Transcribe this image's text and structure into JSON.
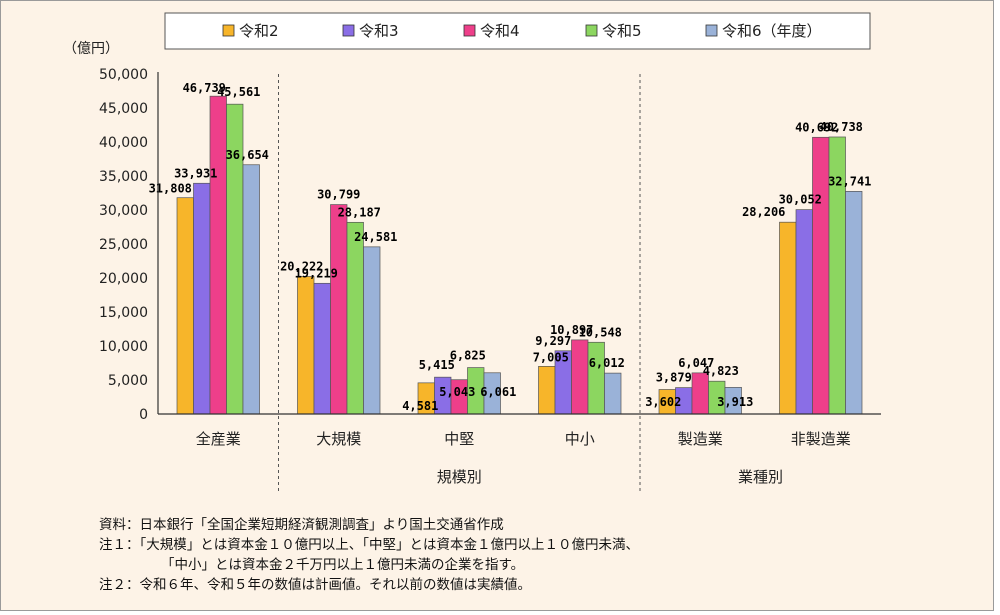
{
  "chart_data": {
    "type": "bar",
    "ylabel": "（億円）",
    "ylim": [
      0,
      50000
    ],
    "yticks": [
      "50,000",
      "45,000",
      "40,000",
      "35,000",
      "30,000",
      "25,000",
      "20,000",
      "15,000",
      "10,000",
      "5,000",
      "0"
    ],
    "ytick_values": [
      50000,
      45000,
      40000,
      35000,
      30000,
      25000,
      20000,
      15000,
      10000,
      5000,
      0
    ],
    "categories": [
      "全産業",
      "大規模",
      "中堅",
      "中小",
      "製造業",
      "非製造業"
    ],
    "groups": [
      {
        "label": "規模別",
        "categories": [
          "大規模",
          "中堅",
          "中小"
        ]
      },
      {
        "label": "業種別",
        "categories": [
          "製造業",
          "非製造業"
        ]
      }
    ],
    "legend": {
      "placement": "top",
      "entries": [
        "令和2",
        "令和3",
        "令和4",
        "令和5",
        "令和6（年度）"
      ]
    },
    "series": [
      {
        "name": "令和2",
        "color": "#f7b52a",
        "values": [
          31808,
          20222,
          4581,
          7005,
          3602,
          28206
        ],
        "labels": [
          "31,808",
          "20,222",
          "4,581",
          "7,005",
          "3,602",
          "28,206"
        ]
      },
      {
        "name": "令和3",
        "color": "#8a6ee6",
        "values": [
          33931,
          19219,
          5415,
          9297,
          3879,
          30052
        ],
        "labels": [
          "33,931",
          "19,219",
          "5,415",
          "9,297",
          "3,879",
          "30,052"
        ]
      },
      {
        "name": "令和4",
        "color": "#ee3f8a",
        "values": [
          46739,
          30799,
          5043,
          10897,
          6047,
          40692
        ],
        "labels": [
          "46,739",
          "30,799",
          "5,043",
          "10,897",
          "6,047",
          "40,692"
        ]
      },
      {
        "name": "令和5",
        "color": "#8cd660",
        "values": [
          45561,
          28187,
          6825,
          10548,
          4823,
          40738
        ],
        "labels": [
          "45,561",
          "28,187",
          "6,825",
          "10,548",
          "4,823",
          "40,738"
        ]
      },
      {
        "name": "令和6（年度）",
        "color": "#9ab2d8",
        "values": [
          36654,
          24581,
          6061,
          6012,
          3913,
          32741
        ],
        "labels": [
          "36,654",
          "24,581",
          "6,061",
          "6,012",
          "3,913",
          "32,741"
        ]
      }
    ]
  },
  "notes": {
    "source": "資料：日本銀行「全国企業短期経済観測調査」より国土交通省作成",
    "note1_line1": "注１：「大規模」とは資本金１０億円以上、「中堅」とは資本金１億円以上１０億円未満、",
    "note1_line2": "「中小」とは資本金２千万円以上１億円未満の企業を指す。",
    "note2": "注２：令和６年、令和５年の数値は計画値。それ以前の数値は実績値。"
  }
}
